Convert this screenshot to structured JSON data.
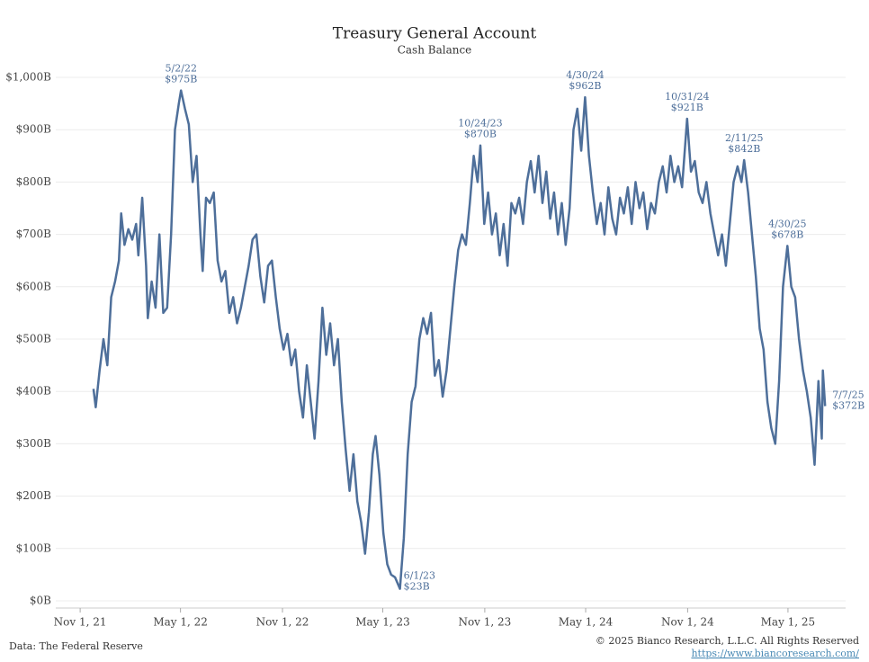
{
  "chart_data": {
    "type": "line",
    "title": "Treasury General Account",
    "subtitle": "Cash Balance",
    "source": "Data: The Federal Reserve",
    "copyright": "© 2025 Bianco Research, L.L.C. All Rights Reserved",
    "url": "https://www.biancoresearch.com/",
    "color": "#4e6f9a",
    "grid": true,
    "xlim": [
      "2021-09-18",
      "2025-08-13"
    ],
    "xticks": [
      {
        "value": "2021-11-01",
        "label": "Nov 1, 21"
      },
      {
        "value": "2022-05-01",
        "label": "May 1, 22"
      },
      {
        "value": "2022-11-01",
        "label": "Nov 1, 22"
      },
      {
        "value": "2023-05-01",
        "label": "May 1, 23"
      },
      {
        "value": "2023-11-01",
        "label": "Nov 1, 23"
      },
      {
        "value": "2024-05-01",
        "label": "May 1, 24"
      },
      {
        "value": "2024-11-01",
        "label": "Nov 1, 24"
      },
      {
        "value": "2025-05-01",
        "label": "May 1, 25"
      }
    ],
    "ylim": [
      0,
      1000
    ],
    "yticks": [
      {
        "value": 0,
        "label": "$0B"
      },
      {
        "value": 100,
        "label": "$100B"
      },
      {
        "value": 200,
        "label": "$200B"
      },
      {
        "value": 300,
        "label": "$300B"
      },
      {
        "value": 400,
        "label": "$400B"
      },
      {
        "value": 500,
        "label": "$500B"
      },
      {
        "value": 600,
        "label": "$600B"
      },
      {
        "value": 700,
        "label": "$700B"
      },
      {
        "value": 800,
        "label": "$800B"
      },
      {
        "value": 900,
        "label": "$900B"
      },
      {
        "value": 1000,
        "label": "$1,000B"
      }
    ],
    "x": [
      "2021-11-25",
      "2021-11-29",
      "2021-12-06",
      "2021-12-13",
      "2021-12-20",
      "2021-12-27",
      "2022-01-03",
      "2022-01-10",
      "2022-01-14",
      "2022-01-20",
      "2022-01-27",
      "2022-02-03",
      "2022-02-10",
      "2022-02-14",
      "2022-02-21",
      "2022-02-28",
      "2022-03-03",
      "2022-03-10",
      "2022-03-17",
      "2022-03-24",
      "2022-03-31",
      "2022-04-07",
      "2022-04-14",
      "2022-04-21",
      "2022-04-28",
      "2022-05-02",
      "2022-05-09",
      "2022-05-16",
      "2022-05-23",
      "2022-05-30",
      "2022-06-06",
      "2022-06-10",
      "2022-06-16",
      "2022-06-23",
      "2022-06-30",
      "2022-07-07",
      "2022-07-14",
      "2022-07-21",
      "2022-07-28",
      "2022-08-04",
      "2022-08-11",
      "2022-08-18",
      "2022-08-25",
      "2022-09-01",
      "2022-09-08",
      "2022-09-15",
      "2022-09-22",
      "2022-09-29",
      "2022-10-06",
      "2022-10-13",
      "2022-10-20",
      "2022-10-27",
      "2022-11-03",
      "2022-11-10",
      "2022-11-17",
      "2022-11-24",
      "2022-12-01",
      "2022-12-08",
      "2022-12-15",
      "2022-12-22",
      "2022-12-29",
      "2023-01-05",
      "2023-01-12",
      "2023-01-19",
      "2023-01-26",
      "2023-02-02",
      "2023-02-09",
      "2023-02-16",
      "2023-02-23",
      "2023-03-02",
      "2023-03-09",
      "2023-03-16",
      "2023-03-23",
      "2023-03-30",
      "2023-04-06",
      "2023-04-13",
      "2023-04-18",
      "2023-04-25",
      "2023-05-02",
      "2023-05-09",
      "2023-05-16",
      "2023-05-23",
      "2023-06-01",
      "2023-06-08",
      "2023-06-15",
      "2023-06-22",
      "2023-06-29",
      "2023-07-06",
      "2023-07-13",
      "2023-07-20",
      "2023-07-27",
      "2023-08-03",
      "2023-08-10",
      "2023-08-17",
      "2023-08-24",
      "2023-08-31",
      "2023-09-07",
      "2023-09-14",
      "2023-09-21",
      "2023-09-28",
      "2023-10-05",
      "2023-10-12",
      "2023-10-19",
      "2023-10-24",
      "2023-10-31",
      "2023-11-07",
      "2023-11-14",
      "2023-11-21",
      "2023-11-28",
      "2023-12-05",
      "2023-12-12",
      "2023-12-19",
      "2023-12-26",
      "2024-01-02",
      "2024-01-09",
      "2024-01-16",
      "2024-01-23",
      "2024-01-30",
      "2024-02-06",
      "2024-02-13",
      "2024-02-20",
      "2024-02-27",
      "2024-03-05",
      "2024-03-12",
      "2024-03-19",
      "2024-03-26",
      "2024-04-02",
      "2024-04-09",
      "2024-04-16",
      "2024-04-23",
      "2024-04-30",
      "2024-05-07",
      "2024-05-14",
      "2024-05-21",
      "2024-05-28",
      "2024-06-04",
      "2024-06-11",
      "2024-06-18",
      "2024-06-25",
      "2024-07-02",
      "2024-07-09",
      "2024-07-16",
      "2024-07-23",
      "2024-07-30",
      "2024-08-06",
      "2024-08-13",
      "2024-08-20",
      "2024-08-27",
      "2024-09-03",
      "2024-09-10",
      "2024-09-17",
      "2024-09-24",
      "2024-10-01",
      "2024-10-08",
      "2024-10-15",
      "2024-10-22",
      "2024-10-31",
      "2024-11-07",
      "2024-11-14",
      "2024-11-21",
      "2024-11-28",
      "2024-12-05",
      "2024-12-12",
      "2024-12-19",
      "2024-12-26",
      "2025-01-02",
      "2025-01-09",
      "2025-01-16",
      "2025-01-23",
      "2025-01-30",
      "2025-02-06",
      "2025-02-11",
      "2025-02-18",
      "2025-02-25",
      "2025-03-04",
      "2025-03-11",
      "2025-03-18",
      "2025-03-25",
      "2025-04-01",
      "2025-04-08",
      "2025-04-15",
      "2025-04-22",
      "2025-04-30",
      "2025-05-07",
      "2025-05-14",
      "2025-05-21",
      "2025-05-28",
      "2025-06-04",
      "2025-06-11",
      "2025-06-18",
      "2025-06-25",
      "2025-07-01",
      "2025-07-03",
      "2025-07-07"
    ],
    "values": [
      405,
      370,
      440,
      500,
      450,
      580,
      610,
      650,
      740,
      680,
      710,
      690,
      720,
      660,
      770,
      640,
      540,
      610,
      560,
      700,
      550,
      560,
      700,
      900,
      950,
      975,
      940,
      910,
      800,
      850,
      700,
      630,
      770,
      760,
      780,
      650,
      610,
      630,
      550,
      580,
      530,
      560,
      600,
      640,
      690,
      700,
      620,
      570,
      640,
      650,
      580,
      520,
      480,
      510,
      450,
      480,
      400,
      350,
      450,
      380,
      310,
      420,
      560,
      470,
      530,
      450,
      500,
      380,
      290,
      210,
      280,
      190,
      150,
      90,
      170,
      280,
      315,
      240,
      130,
      70,
      50,
      45,
      23,
      120,
      280,
      380,
      410,
      500,
      540,
      510,
      550,
      430,
      460,
      390,
      440,
      520,
      600,
      670,
      700,
      680,
      760,
      850,
      800,
      870,
      720,
      780,
      700,
      740,
      660,
      720,
      640,
      760,
      740,
      770,
      720,
      800,
      840,
      780,
      850,
      760,
      820,
      730,
      780,
      700,
      760,
      680,
      750,
      900,
      940,
      860,
      962,
      850,
      780,
      720,
      760,
      700,
      790,
      730,
      700,
      770,
      740,
      790,
      720,
      800,
      750,
      780,
      710,
      760,
      740,
      800,
      830,
      780,
      850,
      800,
      830,
      790,
      921,
      820,
      840,
      780,
      760,
      800,
      740,
      700,
      660,
      700,
      640,
      720,
      800,
      830,
      800,
      842,
      780,
      700,
      620,
      520,
      480,
      380,
      330,
      300,
      420,
      600,
      678,
      600,
      580,
      500,
      440,
      400,
      350,
      260,
      420,
      310,
      440,
      372
    ],
    "annotations": [
      {
        "date": "5/2/22",
        "text": "$975B",
        "x": "2022-05-02",
        "y": 975
      },
      {
        "date": "6/1/23",
        "text": "$23B",
        "x": "2023-06-01",
        "y": 23
      },
      {
        "date": "10/24/23",
        "text": "$870B",
        "x": "2023-10-24",
        "y": 870
      },
      {
        "date": "4/30/24",
        "text": "$962B",
        "x": "2024-04-30",
        "y": 962
      },
      {
        "date": "10/31/24",
        "text": "$921B",
        "x": "2024-10-31",
        "y": 921
      },
      {
        "date": "2/11/25",
        "text": "$842B",
        "x": "2025-02-11",
        "y": 842
      },
      {
        "date": "4/30/25",
        "text": "$678B",
        "x": "2025-04-30",
        "y": 678
      },
      {
        "date": "7/7/25",
        "text": "$372B",
        "x": "2025-07-07",
        "y": 372
      }
    ]
  }
}
